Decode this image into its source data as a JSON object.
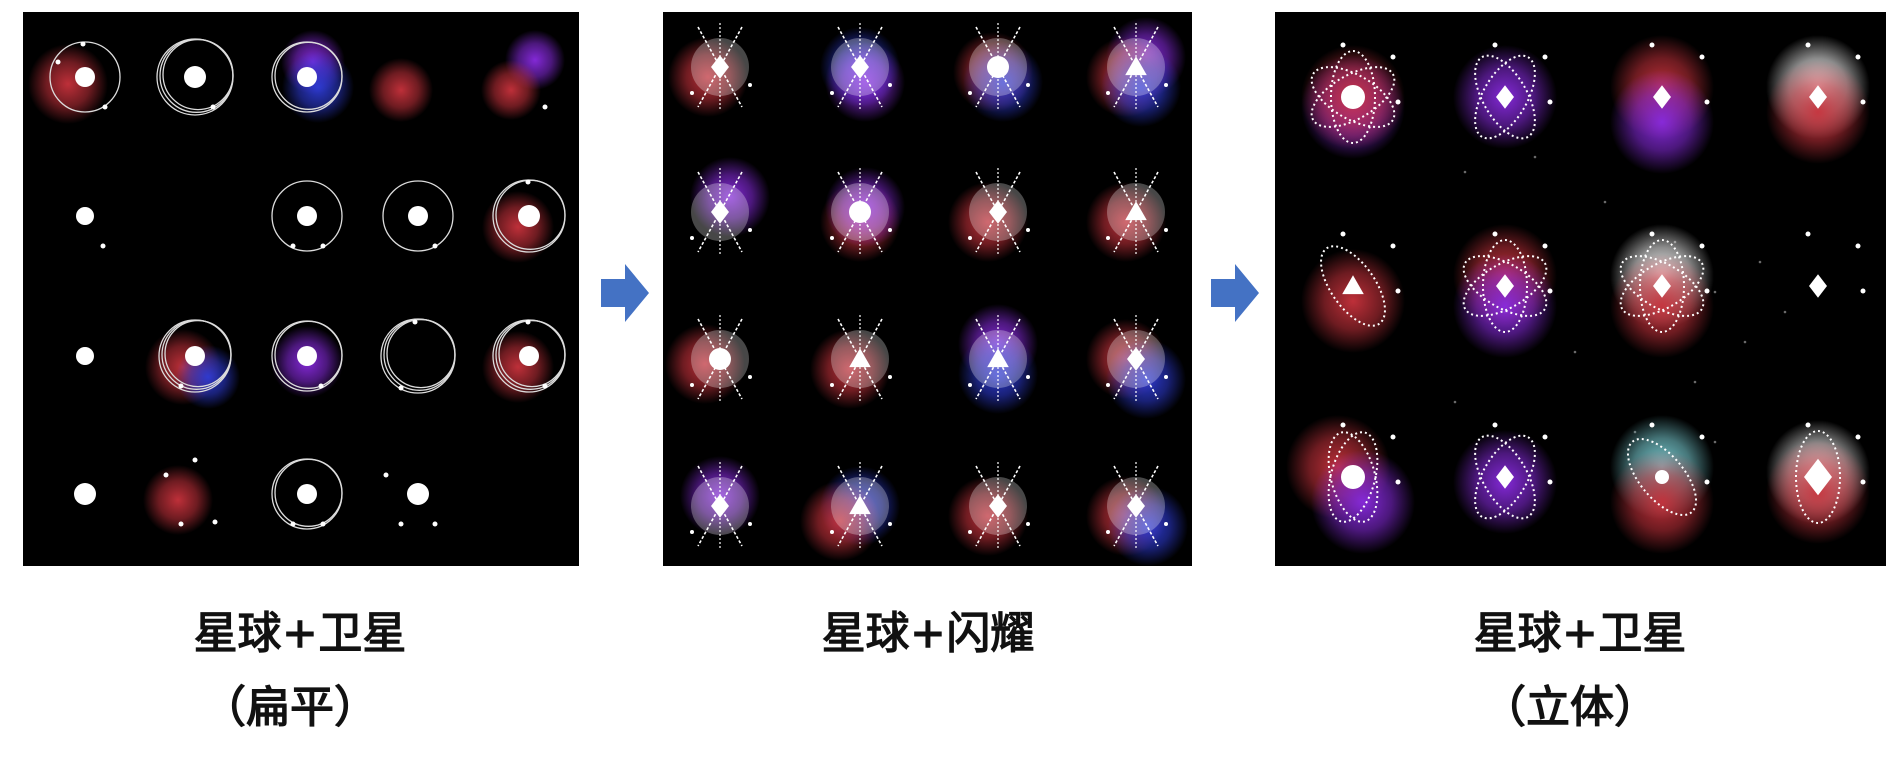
{
  "colors": {
    "panel_bg": "#000000",
    "arrow": "#4472c4",
    "red_glow": "#c8323c",
    "purple_glow": "#8a2be2",
    "blue_glow": "#2e3cd8",
    "teal_glow": "#7fd6dc",
    "planet": "#ffffff",
    "orbit": "#dcdcdc"
  },
  "panels": {
    "flat": {
      "caption_line1": "星球+卫星",
      "caption_line2": "（扁平）"
    },
    "shine": {
      "caption_line1": "星球+闪耀"
    },
    "solid": {
      "caption_line1": "星球+卫星",
      "caption_line2": "（立体）"
    }
  },
  "icons": {
    "arrow_1": "right-arrow-icon",
    "arrow_2": "right-arrow-icon"
  }
}
